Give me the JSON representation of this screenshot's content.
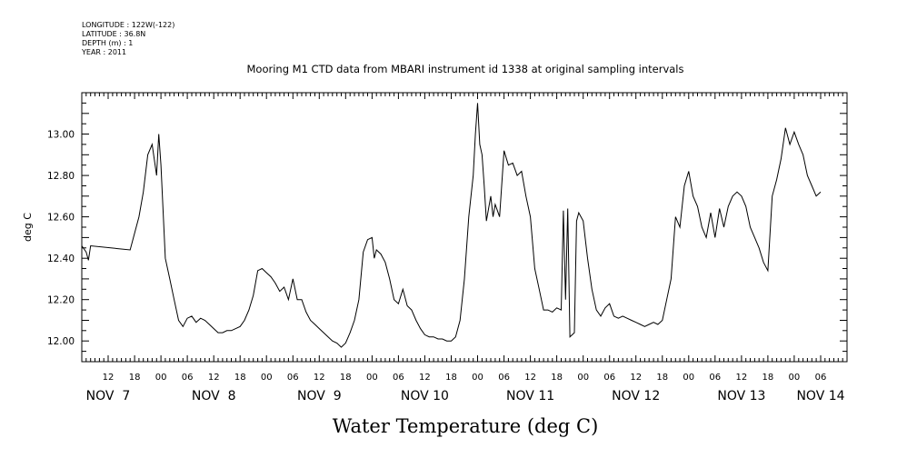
{
  "header": {
    "longitude": "LONGITUDE : 122W(-122)",
    "latitude": "LATITUDE : 36.8N",
    "depth": "DEPTH (m) : 1",
    "year": "YEAR : 2011"
  },
  "chart_data": {
    "type": "line",
    "title": "Mooring M1 CTD data from MBARI instrument id 1338 at original sampling intervals",
    "xlabel": "Water Temperature (deg C)",
    "ylabel": "deg C",
    "xlim": [
      "2011-11-07T06:00",
      "2011-11-14T12:00"
    ],
    "ylim": [
      11.9,
      13.2
    ],
    "yticks": [
      "12.00",
      "12.20",
      "12.40",
      "12.60",
      "12.80",
      "13.00"
    ],
    "hour_ticks": [
      {
        "t": "2011-11-07T12:00",
        "label": "12"
      },
      {
        "t": "2011-11-07T18:00",
        "label": "18"
      },
      {
        "t": "2011-11-08T00:00",
        "label": "00"
      },
      {
        "t": "2011-11-08T06:00",
        "label": "06"
      },
      {
        "t": "2011-11-08T12:00",
        "label": "12"
      },
      {
        "t": "2011-11-08T18:00",
        "label": "18"
      },
      {
        "t": "2011-11-09T00:00",
        "label": "00"
      },
      {
        "t": "2011-11-09T06:00",
        "label": "06"
      },
      {
        "t": "2011-11-09T12:00",
        "label": "12"
      },
      {
        "t": "2011-11-09T18:00",
        "label": "18"
      },
      {
        "t": "2011-11-10T00:00",
        "label": "00"
      },
      {
        "t": "2011-11-10T06:00",
        "label": "06"
      },
      {
        "t": "2011-11-10T12:00",
        "label": "12"
      },
      {
        "t": "2011-11-10T18:00",
        "label": "18"
      },
      {
        "t": "2011-11-11T00:00",
        "label": "00"
      },
      {
        "t": "2011-11-11T06:00",
        "label": "06"
      },
      {
        "t": "2011-11-11T12:00",
        "label": "12"
      },
      {
        "t": "2011-11-11T18:00",
        "label": "18"
      },
      {
        "t": "2011-11-12T00:00",
        "label": "00"
      },
      {
        "t": "2011-11-12T06:00",
        "label": "06"
      },
      {
        "t": "2011-11-12T12:00",
        "label": "12"
      },
      {
        "t": "2011-11-12T18:00",
        "label": "18"
      },
      {
        "t": "2011-11-13T00:00",
        "label": "00"
      },
      {
        "t": "2011-11-13T06:00",
        "label": "06"
      },
      {
        "t": "2011-11-13T12:00",
        "label": "12"
      },
      {
        "t": "2011-11-13T18:00",
        "label": "18"
      },
      {
        "t": "2011-11-14T00:00",
        "label": "00"
      },
      {
        "t": "2011-11-14T06:00",
        "label": "06"
      }
    ],
    "day_labels": [
      {
        "t": "2011-11-07T12:00",
        "label": "NOV  7"
      },
      {
        "t": "2011-11-08T12:00",
        "label": "NOV  8"
      },
      {
        "t": "2011-11-09T12:00",
        "label": "NOV  9"
      },
      {
        "t": "2011-11-10T12:00",
        "label": "NOV 10"
      },
      {
        "t": "2011-11-11T12:00",
        "label": "NOV 11"
      },
      {
        "t": "2011-11-12T12:00",
        "label": "NOV 12"
      },
      {
        "t": "2011-11-13T12:00",
        "label": "NOV 13"
      },
      {
        "t": "2011-11-14T06:00",
        "label": "NOV 14"
      }
    ],
    "series": [
      {
        "values": [
          [
            "2011-11-07T06:00",
            12.46
          ],
          [
            "2011-11-07T07:00",
            12.43
          ],
          [
            "2011-11-07T07:30",
            12.39
          ],
          [
            "2011-11-07T08:00",
            12.46
          ],
          [
            "2011-11-07T17:00",
            12.44
          ],
          [
            "2011-11-07T19:00",
            12.6
          ],
          [
            "2011-11-07T20:00",
            12.72
          ],
          [
            "2011-11-07T21:00",
            12.9
          ],
          [
            "2011-11-07T22:00",
            12.95
          ],
          [
            "2011-11-07T23:00",
            12.8
          ],
          [
            "2011-11-07T23:30",
            13.0
          ],
          [
            "2011-11-08T00:00",
            12.85
          ],
          [
            "2011-11-08T01:00",
            12.4
          ],
          [
            "2011-11-08T02:00",
            12.3
          ],
          [
            "2011-11-08T03:00",
            12.2
          ],
          [
            "2011-11-08T04:00",
            12.1
          ],
          [
            "2011-11-08T05:00",
            12.07
          ],
          [
            "2011-11-08T06:00",
            12.11
          ],
          [
            "2011-11-08T07:00",
            12.12
          ],
          [
            "2011-11-08T08:00",
            12.09
          ],
          [
            "2011-11-08T09:00",
            12.11
          ],
          [
            "2011-11-08T10:00",
            12.1
          ],
          [
            "2011-11-08T11:00",
            12.08
          ],
          [
            "2011-11-08T12:00",
            12.06
          ],
          [
            "2011-11-08T13:00",
            12.04
          ],
          [
            "2011-11-08T14:00",
            12.04
          ],
          [
            "2011-11-08T15:00",
            12.05
          ],
          [
            "2011-11-08T16:00",
            12.05
          ],
          [
            "2011-11-08T17:00",
            12.06
          ],
          [
            "2011-11-08T18:00",
            12.07
          ],
          [
            "2011-11-08T19:00",
            12.1
          ],
          [
            "2011-11-08T20:00",
            12.15
          ],
          [
            "2011-11-08T21:00",
            12.22
          ],
          [
            "2011-11-08T22:00",
            12.34
          ],
          [
            "2011-11-08T23:00",
            12.35
          ],
          [
            "2011-11-09T00:00",
            12.33
          ],
          [
            "2011-11-09T01:00",
            12.31
          ],
          [
            "2011-11-09T02:00",
            12.28
          ],
          [
            "2011-11-09T03:00",
            12.24
          ],
          [
            "2011-11-09T04:00",
            12.26
          ],
          [
            "2011-11-09T05:00",
            12.2
          ],
          [
            "2011-11-09T06:00",
            12.3
          ],
          [
            "2011-11-09T07:00",
            12.2
          ],
          [
            "2011-11-09T08:00",
            12.2
          ],
          [
            "2011-11-09T09:00",
            12.14
          ],
          [
            "2011-11-09T10:00",
            12.1
          ],
          [
            "2011-11-09T11:00",
            12.08
          ],
          [
            "2011-11-09T12:00",
            12.06
          ],
          [
            "2011-11-09T13:00",
            12.04
          ],
          [
            "2011-11-09T14:00",
            12.02
          ],
          [
            "2011-11-09T15:00",
            12.0
          ],
          [
            "2011-11-09T16:00",
            11.99
          ],
          [
            "2011-11-09T17:00",
            11.97
          ],
          [
            "2011-11-09T18:00",
            11.99
          ],
          [
            "2011-11-09T19:00",
            12.04
          ],
          [
            "2011-11-09T20:00",
            12.1
          ],
          [
            "2011-11-09T21:00",
            12.2
          ],
          [
            "2011-11-09T22:00",
            12.43
          ],
          [
            "2011-11-09T23:00",
            12.49
          ],
          [
            "2011-11-10T00:00",
            12.5
          ],
          [
            "2011-11-10T00:30",
            12.4
          ],
          [
            "2011-11-10T01:00",
            12.44
          ],
          [
            "2011-11-10T02:00",
            12.42
          ],
          [
            "2011-11-10T03:00",
            12.38
          ],
          [
            "2011-11-10T04:00",
            12.3
          ],
          [
            "2011-11-10T05:00",
            12.2
          ],
          [
            "2011-11-10T06:00",
            12.18
          ],
          [
            "2011-11-10T07:00",
            12.25
          ],
          [
            "2011-11-10T08:00",
            12.17
          ],
          [
            "2011-11-10T09:00",
            12.15
          ],
          [
            "2011-11-10T10:00",
            12.1
          ],
          [
            "2011-11-10T11:00",
            12.06
          ],
          [
            "2011-11-10T12:00",
            12.03
          ],
          [
            "2011-11-10T13:00",
            12.02
          ],
          [
            "2011-11-10T14:00",
            12.02
          ],
          [
            "2011-11-10T15:00",
            12.01
          ],
          [
            "2011-11-10T16:00",
            12.01
          ],
          [
            "2011-11-10T17:00",
            12.0
          ],
          [
            "2011-11-10T18:00",
            12.0
          ],
          [
            "2011-11-10T19:00",
            12.02
          ],
          [
            "2011-11-10T20:00",
            12.1
          ],
          [
            "2011-11-10T21:00",
            12.3
          ],
          [
            "2011-11-10T22:00",
            12.6
          ],
          [
            "2011-11-10T23:00",
            12.8
          ],
          [
            "2011-11-10T23:30",
            13.0
          ],
          [
            "2011-11-11T00:00",
            13.15
          ],
          [
            "2011-11-11T00:30",
            12.95
          ],
          [
            "2011-11-11T01:00",
            12.9
          ],
          [
            "2011-11-11T01:30",
            12.75
          ],
          [
            "2011-11-11T02:00",
            12.58
          ],
          [
            "2011-11-11T03:00",
            12.7
          ],
          [
            "2011-11-11T03:30",
            12.6
          ],
          [
            "2011-11-11T04:00",
            12.66
          ],
          [
            "2011-11-11T05:00",
            12.6
          ],
          [
            "2011-11-11T06:00",
            12.92
          ],
          [
            "2011-11-11T07:00",
            12.85
          ],
          [
            "2011-11-11T08:00",
            12.86
          ],
          [
            "2011-11-11T09:00",
            12.8
          ],
          [
            "2011-11-11T10:00",
            12.82
          ],
          [
            "2011-11-11T11:00",
            12.7
          ],
          [
            "2011-11-11T12:00",
            12.6
          ],
          [
            "2011-11-11T13:00",
            12.35
          ],
          [
            "2011-11-11T14:00",
            12.25
          ],
          [
            "2011-11-11T15:00",
            12.15
          ],
          [
            "2011-11-11T16:00",
            12.15
          ],
          [
            "2011-11-11T17:00",
            12.14
          ],
          [
            "2011-11-11T18:00",
            12.16
          ],
          [
            "2011-11-11T19:00",
            12.15
          ],
          [
            "2011-11-11T19:30",
            12.63
          ],
          [
            "2011-11-11T20:00",
            12.2
          ],
          [
            "2011-11-11T20:30",
            12.64
          ],
          [
            "2011-11-11T21:00",
            12.02
          ],
          [
            "2011-11-11T22:00",
            12.04
          ],
          [
            "2011-11-11T22:30",
            12.58
          ],
          [
            "2011-11-11T23:00",
            12.62
          ],
          [
            "2011-11-12T00:00",
            12.58
          ],
          [
            "2011-11-12T01:00",
            12.4
          ],
          [
            "2011-11-12T02:00",
            12.25
          ],
          [
            "2011-11-12T03:00",
            12.15
          ],
          [
            "2011-11-12T04:00",
            12.12
          ],
          [
            "2011-11-12T05:00",
            12.16
          ],
          [
            "2011-11-12T06:00",
            12.18
          ],
          [
            "2011-11-12T07:00",
            12.12
          ],
          [
            "2011-11-12T08:00",
            12.11
          ],
          [
            "2011-11-12T09:00",
            12.12
          ],
          [
            "2011-11-12T10:00",
            12.11
          ],
          [
            "2011-11-12T11:00",
            12.1
          ],
          [
            "2011-11-12T12:00",
            12.09
          ],
          [
            "2011-11-12T13:00",
            12.08
          ],
          [
            "2011-11-12T14:00",
            12.07
          ],
          [
            "2011-11-12T15:00",
            12.08
          ],
          [
            "2011-11-12T16:00",
            12.09
          ],
          [
            "2011-11-12T17:00",
            12.08
          ],
          [
            "2011-11-12T18:00",
            12.1
          ],
          [
            "2011-11-12T19:00",
            12.2
          ],
          [
            "2011-11-12T20:00",
            12.3
          ],
          [
            "2011-11-12T21:00",
            12.6
          ],
          [
            "2011-11-12T22:00",
            12.55
          ],
          [
            "2011-11-12T23:00",
            12.75
          ],
          [
            "2011-11-13T00:00",
            12.82
          ],
          [
            "2011-11-13T01:00",
            12.7
          ],
          [
            "2011-11-13T02:00",
            12.65
          ],
          [
            "2011-11-13T03:00",
            12.55
          ],
          [
            "2011-11-13T04:00",
            12.5
          ],
          [
            "2011-11-13T05:00",
            12.62
          ],
          [
            "2011-11-13T06:00",
            12.5
          ],
          [
            "2011-11-13T07:00",
            12.64
          ],
          [
            "2011-11-13T08:00",
            12.55
          ],
          [
            "2011-11-13T09:00",
            12.65
          ],
          [
            "2011-11-13T10:00",
            12.7
          ],
          [
            "2011-11-13T11:00",
            12.72
          ],
          [
            "2011-11-13T12:00",
            12.7
          ],
          [
            "2011-11-13T13:00",
            12.65
          ],
          [
            "2011-11-13T14:00",
            12.55
          ],
          [
            "2011-11-13T15:00",
            12.5
          ],
          [
            "2011-11-13T16:00",
            12.45
          ],
          [
            "2011-11-13T17:00",
            12.38
          ],
          [
            "2011-11-13T18:00",
            12.34
          ],
          [
            "2011-11-13T19:00",
            12.7
          ],
          [
            "2011-11-13T20:00",
            12.78
          ],
          [
            "2011-11-13T21:00",
            12.88
          ],
          [
            "2011-11-13T22:00",
            13.03
          ],
          [
            "2011-11-13T23:00",
            12.95
          ],
          [
            "2011-11-14T00:00",
            13.01
          ],
          [
            "2011-11-14T01:00",
            12.95
          ],
          [
            "2011-11-14T02:00",
            12.9
          ],
          [
            "2011-11-14T03:00",
            12.8
          ],
          [
            "2011-11-14T04:00",
            12.75
          ],
          [
            "2011-11-14T05:00",
            12.7
          ],
          [
            "2011-11-14T06:00",
            12.72
          ]
        ]
      }
    ]
  }
}
